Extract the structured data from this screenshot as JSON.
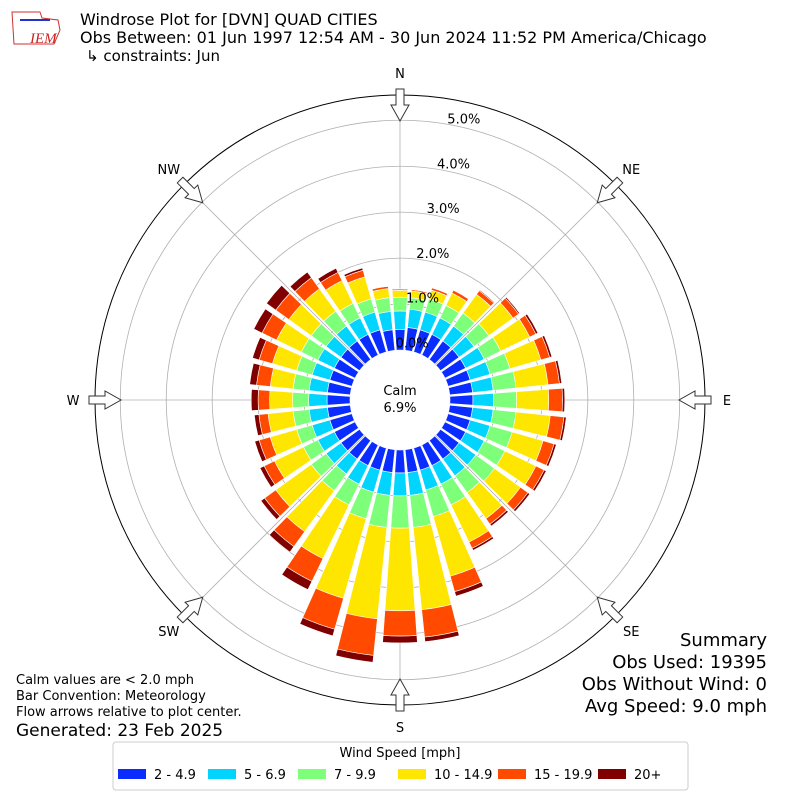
{
  "chart_data": {
    "type": "windrose",
    "logo_text": "IEM",
    "title": "Windrose Plot for [DVN] QUAD CITIES",
    "subtitle": "Obs Between: 01 Jun 1997 12:54 AM - 30 Jun 2024 11:52 PM America/Chicago",
    "constraints": "↳ constraints: Jun",
    "compass": {
      "angles": [
        0,
        45,
        90,
        135,
        180,
        225,
        270,
        315
      ],
      "labels": [
        "N",
        "NE",
        "E",
        "SE",
        "S",
        "SW",
        "W",
        "NW"
      ]
    },
    "calm_label": "Calm",
    "calm_value": "6.9%",
    "rlim": [
      0,
      5.55
    ],
    "rticks": [
      {
        "value": 0,
        "label": "0.0%"
      },
      {
        "value": 1,
        "label": "1.0%"
      },
      {
        "value": 2,
        "label": "2.0%"
      },
      {
        "value": 3,
        "label": "3.0%"
      },
      {
        "value": 4,
        "label": "4.0%"
      },
      {
        "value": 5,
        "label": "5.0%"
      }
    ],
    "grid": true,
    "x": [
      0,
      10,
      20,
      30,
      40,
      50,
      60,
      70,
      80,
      90,
      100,
      110,
      120,
      130,
      140,
      150,
      160,
      170,
      180,
      190,
      200,
      210,
      220,
      230,
      240,
      250,
      260,
      270,
      280,
      290,
      300,
      310,
      320,
      330,
      340,
      350
    ],
    "legend_title": "Wind Speed [mph]",
    "series": [
      {
        "name": "2 - 4.9",
        "color": "#0a2cff",
        "values": [
          0.45,
          0.5,
          0.5,
          0.5,
          0.5,
          0.5,
          0.5,
          0.5,
          0.5,
          0.5,
          0.5,
          0.5,
          0.5,
          0.5,
          0.5,
          0.5,
          0.5,
          0.5,
          0.5,
          0.5,
          0.5,
          0.5,
          0.5,
          0.5,
          0.5,
          0.5,
          0.5,
          0.5,
          0.5,
          0.5,
          0.5,
          0.5,
          0.5,
          0.5,
          0.5,
          0.45
        ]
      },
      {
        "name": "5 - 6.9",
        "color": "#00d4ff",
        "values": [
          0.4,
          0.4,
          0.4,
          0.4,
          0.4,
          0.4,
          0.45,
          0.45,
          0.45,
          0.45,
          0.45,
          0.45,
          0.45,
          0.45,
          0.45,
          0.45,
          0.45,
          0.5,
          0.5,
          0.5,
          0.5,
          0.45,
          0.4,
          0.4,
          0.4,
          0.4,
          0.4,
          0.4,
          0.4,
          0.4,
          0.4,
          0.4,
          0.4,
          0.4,
          0.4,
          0.4
        ]
      },
      {
        "name": "7 - 9.9",
        "color": "#7dff7a",
        "values": [
          0.3,
          0.25,
          0.3,
          0.3,
          0.35,
          0.4,
          0.4,
          0.45,
          0.5,
          0.5,
          0.5,
          0.5,
          0.5,
          0.5,
          0.45,
          0.5,
          0.6,
          0.7,
          0.7,
          0.7,
          0.6,
          0.5,
          0.45,
          0.4,
          0.35,
          0.35,
          0.35,
          0.35,
          0.35,
          0.35,
          0.4,
          0.4,
          0.4,
          0.35,
          0.3,
          0.3
        ]
      },
      {
        "name": "10 - 14.9",
        "color": "#ffe600",
        "values": [
          0.15,
          0.15,
          0.2,
          0.3,
          0.5,
          0.65,
          0.7,
          0.7,
          0.7,
          0.7,
          0.75,
          0.7,
          0.75,
          0.7,
          0.7,
          0.9,
          1.35,
          1.8,
          1.8,
          2.0,
          1.8,
          1.3,
          1.1,
          0.95,
          0.7,
          0.6,
          0.55,
          0.5,
          0.5,
          0.55,
          0.6,
          0.6,
          0.6,
          0.55,
          0.5,
          0.2
        ]
      },
      {
        "name": "15 - 19.9",
        "color": "#ff4a00",
        "values": [
          0.03,
          0.03,
          0.05,
          0.07,
          0.1,
          0.15,
          0.15,
          0.2,
          0.25,
          0.3,
          0.3,
          0.25,
          0.2,
          0.2,
          0.15,
          0.15,
          0.35,
          0.6,
          0.55,
          0.8,
          0.7,
          0.55,
          0.4,
          0.3,
          0.25,
          0.25,
          0.2,
          0.25,
          0.3,
          0.3,
          0.35,
          0.35,
          0.3,
          0.2,
          0.15,
          0.05
        ]
      },
      {
        "name": "20+",
        "color": "#800000",
        "values": [
          0,
          0,
          0.01,
          0.01,
          0.02,
          0.03,
          0.05,
          0.05,
          0.05,
          0.05,
          0.05,
          0.05,
          0.05,
          0.05,
          0.05,
          0.05,
          0.1,
          0.1,
          0.15,
          0.15,
          0.15,
          0.2,
          0.15,
          0.1,
          0.1,
          0.1,
          0.1,
          0.15,
          0.15,
          0.15,
          0.2,
          0.25,
          0.15,
          0.1,
          0.05,
          0.01
        ]
      }
    ],
    "notes": [
      "Calm values are < 2.0 mph",
      "Bar Convention: Meteorology",
      "Flow arrows relative to plot center."
    ],
    "generated": "Generated: 23 Feb 2025",
    "summary": [
      "Summary",
      "Obs Used: 19395",
      "Obs Without Wind: 0",
      "Avg Speed: 9.0 mph"
    ]
  }
}
